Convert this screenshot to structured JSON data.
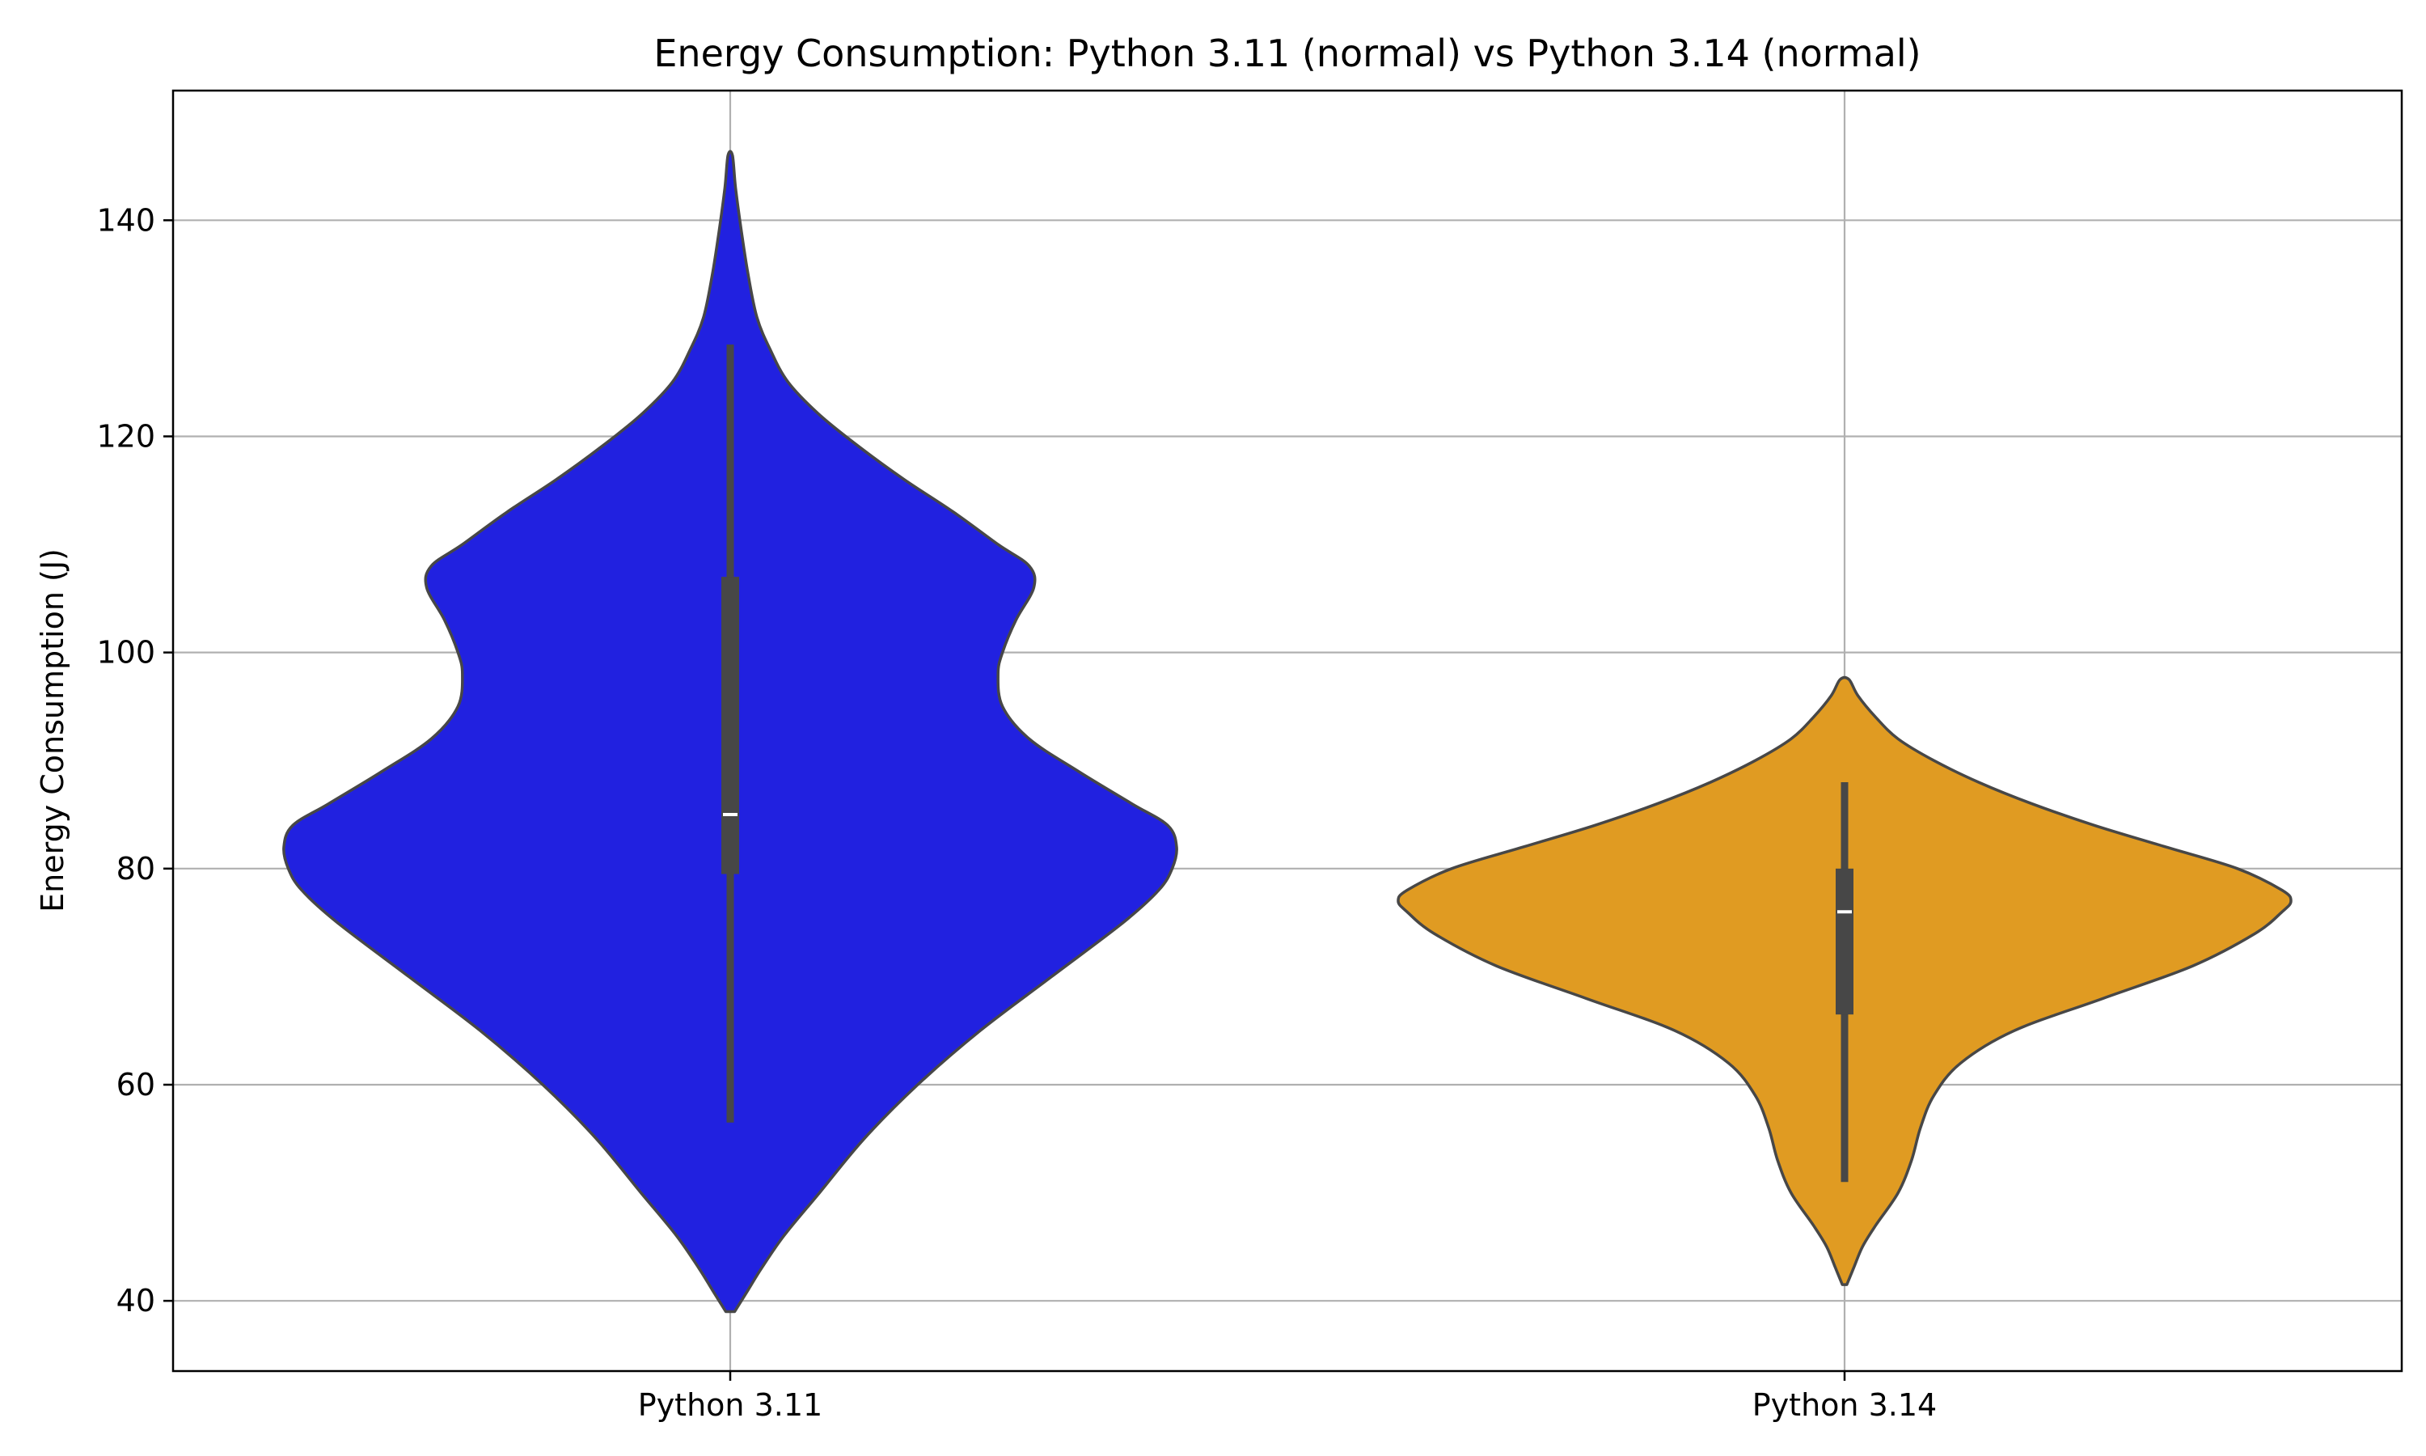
{
  "chart_data": {
    "type": "violin",
    "title": "Energy Consumption: Python 3.11 (normal) vs Python 3.14 (normal)",
    "xlabel": "",
    "ylabel": "Energy Consumption (J)",
    "ylim": [
      33.5,
      152
    ],
    "yticks": [
      40,
      60,
      80,
      100,
      120,
      140
    ],
    "grid": true,
    "categories": [
      "Python 3.11",
      "Python 3.14"
    ],
    "series": [
      {
        "category": "Python 3.11",
        "color": "#2121e0",
        "min": 56.5,
        "q1": 79.5,
        "median": 85,
        "q3": 107,
        "max": 128.5,
        "density_profile": [
          [
            39,
            0.01
          ],
          [
            41,
            0.04
          ],
          [
            43,
            0.07
          ],
          [
            46,
            0.12
          ],
          [
            50,
            0.2
          ],
          [
            55,
            0.3
          ],
          [
            60,
            0.42
          ],
          [
            65,
            0.56
          ],
          [
            70,
            0.72
          ],
          [
            75,
            0.88
          ],
          [
            78,
            0.96
          ],
          [
            80,
            0.99
          ],
          [
            82,
            1.0
          ],
          [
            84,
            0.98
          ],
          [
            86,
            0.9
          ],
          [
            89,
            0.78
          ],
          [
            92,
            0.67
          ],
          [
            95,
            0.61
          ],
          [
            98,
            0.6
          ],
          [
            100,
            0.61
          ],
          [
            103,
            0.64
          ],
          [
            106,
            0.68
          ],
          [
            108,
            0.67
          ],
          [
            110,
            0.6
          ],
          [
            113,
            0.5
          ],
          [
            116,
            0.39
          ],
          [
            119,
            0.29
          ],
          [
            122,
            0.2
          ],
          [
            125,
            0.13
          ],
          [
            128,
            0.09
          ],
          [
            131,
            0.06
          ],
          [
            135,
            0.04
          ],
          [
            139,
            0.025
          ],
          [
            143,
            0.012
          ],
          [
            146,
            0.005
          ]
        ]
      },
      {
        "category": "Python 3.14",
        "color": "#e09b22",
        "min": 51,
        "q1": 66.5,
        "median": 76,
        "q3": 80,
        "max": 88,
        "density_profile": [
          [
            41.5,
            0.005
          ],
          [
            43,
            0.02
          ],
          [
            45,
            0.04
          ],
          [
            47,
            0.07
          ],
          [
            50,
            0.12
          ],
          [
            53,
            0.15
          ],
          [
            56,
            0.17
          ],
          [
            59,
            0.2
          ],
          [
            62,
            0.26
          ],
          [
            65,
            0.38
          ],
          [
            68,
            0.58
          ],
          [
            71,
            0.78
          ],
          [
            74,
            0.92
          ],
          [
            76,
            0.98
          ],
          [
            77,
            1.0
          ],
          [
            78,
            0.98
          ],
          [
            80,
            0.88
          ],
          [
            82,
            0.72
          ],
          [
            84,
            0.56
          ],
          [
            86,
            0.42
          ],
          [
            88,
            0.3
          ],
          [
            90,
            0.2
          ],
          [
            92,
            0.12
          ],
          [
            94,
            0.07
          ],
          [
            96,
            0.03
          ],
          [
            97.5,
            0.01
          ]
        ]
      }
    ]
  }
}
